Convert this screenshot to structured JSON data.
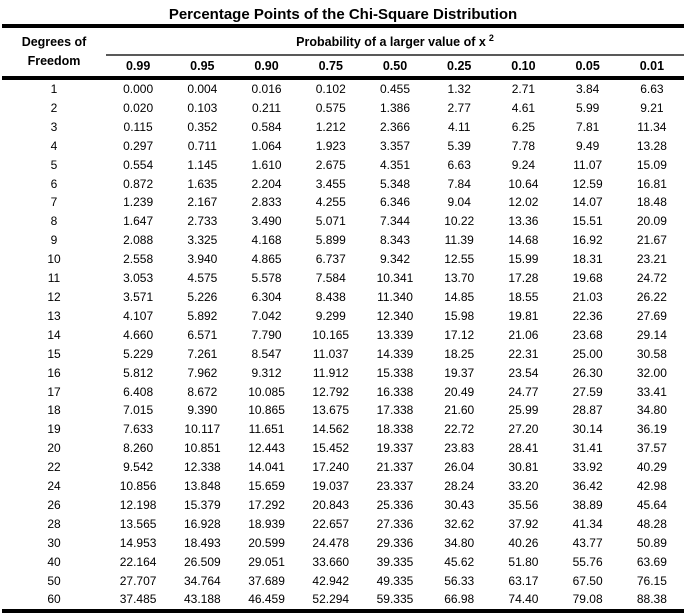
{
  "title": "Percentage Points of the Chi-Square Distribution",
  "table": {
    "corner_header": [
      "Degrees of",
      "Freedom"
    ],
    "span_header": "Probability of a larger value of x",
    "span_header_superscript": "2",
    "column_headers": [
      "0.99",
      "0.95",
      "0.90",
      "0.75",
      "0.50",
      "0.25",
      "0.10",
      "0.05",
      "0.01"
    ],
    "rows": [
      {
        "df": "1",
        "values": [
          "0.000",
          "0.004",
          "0.016",
          "0.102",
          "0.455",
          "1.32",
          "2.71",
          "3.84",
          "6.63"
        ]
      },
      {
        "df": "2",
        "values": [
          "0.020",
          "0.103",
          "0.211",
          "0.575",
          "1.386",
          "2.77",
          "4.61",
          "5.99",
          "9.21"
        ]
      },
      {
        "df": "3",
        "values": [
          "0.115",
          "0.352",
          "0.584",
          "1.212",
          "2.366",
          "4.11",
          "6.25",
          "7.81",
          "11.34"
        ]
      },
      {
        "df": "4",
        "values": [
          "0.297",
          "0.711",
          "1.064",
          "1.923",
          "3.357",
          "5.39",
          "7.78",
          "9.49",
          "13.28"
        ]
      },
      {
        "df": "5",
        "values": [
          "0.554",
          "1.145",
          "1.610",
          "2.675",
          "4.351",
          "6.63",
          "9.24",
          "11.07",
          "15.09"
        ]
      },
      {
        "df": "6",
        "values": [
          "0.872",
          "1.635",
          "2.204",
          "3.455",
          "5.348",
          "7.84",
          "10.64",
          "12.59",
          "16.81"
        ]
      },
      {
        "df": "7",
        "values": [
          "1.239",
          "2.167",
          "2.833",
          "4.255",
          "6.346",
          "9.04",
          "12.02",
          "14.07",
          "18.48"
        ]
      },
      {
        "df": "8",
        "values": [
          "1.647",
          "2.733",
          "3.490",
          "5.071",
          "7.344",
          "10.22",
          "13.36",
          "15.51",
          "20.09"
        ]
      },
      {
        "df": "9",
        "values": [
          "2.088",
          "3.325",
          "4.168",
          "5.899",
          "8.343",
          "11.39",
          "14.68",
          "16.92",
          "21.67"
        ]
      },
      {
        "df": "10",
        "values": [
          "2.558",
          "3.940",
          "4.865",
          "6.737",
          "9.342",
          "12.55",
          "15.99",
          "18.31",
          "23.21"
        ]
      },
      {
        "df": "11",
        "values": [
          "3.053",
          "4.575",
          "5.578",
          "7.584",
          "10.341",
          "13.70",
          "17.28",
          "19.68",
          "24.72"
        ]
      },
      {
        "df": "12",
        "values": [
          "3.571",
          "5.226",
          "6.304",
          "8.438",
          "11.340",
          "14.85",
          "18.55",
          "21.03",
          "26.22"
        ]
      },
      {
        "df": "13",
        "values": [
          "4.107",
          "5.892",
          "7.042",
          "9.299",
          "12.340",
          "15.98",
          "19.81",
          "22.36",
          "27.69"
        ]
      },
      {
        "df": "14",
        "values": [
          "4.660",
          "6.571",
          "7.790",
          "10.165",
          "13.339",
          "17.12",
          "21.06",
          "23.68",
          "29.14"
        ]
      },
      {
        "df": "15",
        "values": [
          "5.229",
          "7.261",
          "8.547",
          "11.037",
          "14.339",
          "18.25",
          "22.31",
          "25.00",
          "30.58"
        ]
      },
      {
        "df": "16",
        "values": [
          "5.812",
          "7.962",
          "9.312",
          "11.912",
          "15.338",
          "19.37",
          "23.54",
          "26.30",
          "32.00"
        ]
      },
      {
        "df": "17",
        "values": [
          "6.408",
          "8.672",
          "10.085",
          "12.792",
          "16.338",
          "20.49",
          "24.77",
          "27.59",
          "33.41"
        ]
      },
      {
        "df": "18",
        "values": [
          "7.015",
          "9.390",
          "10.865",
          "13.675",
          "17.338",
          "21.60",
          "25.99",
          "28.87",
          "34.80"
        ]
      },
      {
        "df": "19",
        "values": [
          "7.633",
          "10.117",
          "11.651",
          "14.562",
          "18.338",
          "22.72",
          "27.20",
          "30.14",
          "36.19"
        ]
      },
      {
        "df": "20",
        "values": [
          "8.260",
          "10.851",
          "12.443",
          "15.452",
          "19.337",
          "23.83",
          "28.41",
          "31.41",
          "37.57"
        ]
      },
      {
        "df": "22",
        "values": [
          "9.542",
          "12.338",
          "14.041",
          "17.240",
          "21.337",
          "26.04",
          "30.81",
          "33.92",
          "40.29"
        ]
      },
      {
        "df": "24",
        "values": [
          "10.856",
          "13.848",
          "15.659",
          "19.037",
          "23.337",
          "28.24",
          "33.20",
          "36.42",
          "42.98"
        ]
      },
      {
        "df": "26",
        "values": [
          "12.198",
          "15.379",
          "17.292",
          "20.843",
          "25.336",
          "30.43",
          "35.56",
          "38.89",
          "45.64"
        ]
      },
      {
        "df": "28",
        "values": [
          "13.565",
          "16.928",
          "18.939",
          "22.657",
          "27.336",
          "32.62",
          "37.92",
          "41.34",
          "48.28"
        ]
      },
      {
        "df": "30",
        "values": [
          "14.953",
          "18.493",
          "20.599",
          "24.478",
          "29.336",
          "34.80",
          "40.26",
          "43.77",
          "50.89"
        ]
      },
      {
        "df": "40",
        "values": [
          "22.164",
          "26.509",
          "29.051",
          "33.660",
          "39.335",
          "45.62",
          "51.80",
          "55.76",
          "63.69"
        ]
      },
      {
        "df": "50",
        "values": [
          "27.707",
          "34.764",
          "37.689",
          "42.942",
          "49.335",
          "56.33",
          "63.17",
          "67.50",
          "76.15"
        ]
      },
      {
        "df": "60",
        "values": [
          "37.485",
          "43.188",
          "46.459",
          "52.294",
          "59.335",
          "66.98",
          "74.40",
          "79.08",
          "88.38"
        ]
      }
    ]
  },
  "colors": {
    "rule_black": "#000000",
    "rule_gray": "#595959",
    "text": "#000000",
    "background": "#ffffff"
  }
}
